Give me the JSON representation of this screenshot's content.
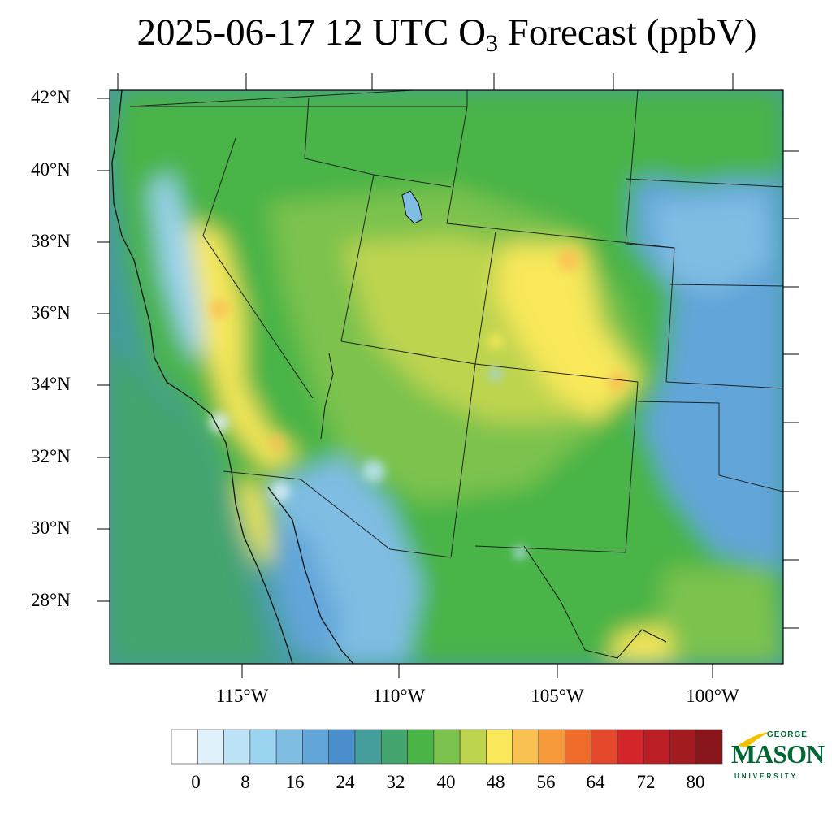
{
  "title": {
    "prefix": "2025-06-17 12 UTC O",
    "subscript": "3",
    "suffix": " Forecast (ppbV)"
  },
  "map": {
    "lat_labels": [
      "42°N",
      "40°N",
      "38°N",
      "36°N",
      "34°N",
      "32°N",
      "30°N",
      "28°N"
    ],
    "lon_labels": [
      "115°W",
      "110°W",
      "105°W",
      "100°W"
    ],
    "lat_values": [
      42,
      40,
      38,
      36,
      34,
      32,
      30,
      28
    ],
    "lon_values": [
      -115,
      -110,
      -105,
      -100
    ],
    "background_value_ocean": 30,
    "field_description_values": {
      "ocean": 30,
      "interior_plateau": 42,
      "california_valley": 14,
      "sierra_ridge": 52,
      "plains_east": 22
    }
  },
  "colorbar": {
    "tick_labels": [
      "0",
      "8",
      "16",
      "24",
      "32",
      "40",
      "48",
      "56",
      "64",
      "72",
      "80"
    ],
    "colors": [
      "#ffffff",
      "#e0f1fb",
      "#bde4f6",
      "#9bd4f1",
      "#7fbde3",
      "#62a5d9",
      "#4a8ecc",
      "#459d9c",
      "#45a56e",
      "#4ab447",
      "#7cc24e",
      "#bdd44f",
      "#f8e85a",
      "#f9c052",
      "#f79a3c",
      "#f06c2b",
      "#e5472a",
      "#d42529",
      "#bb1f25",
      "#a21b1f",
      "#88151a"
    ]
  },
  "logo": {
    "line1": "GEORGE",
    "line2": "MASON",
    "line3": "UNIVERSITY"
  }
}
